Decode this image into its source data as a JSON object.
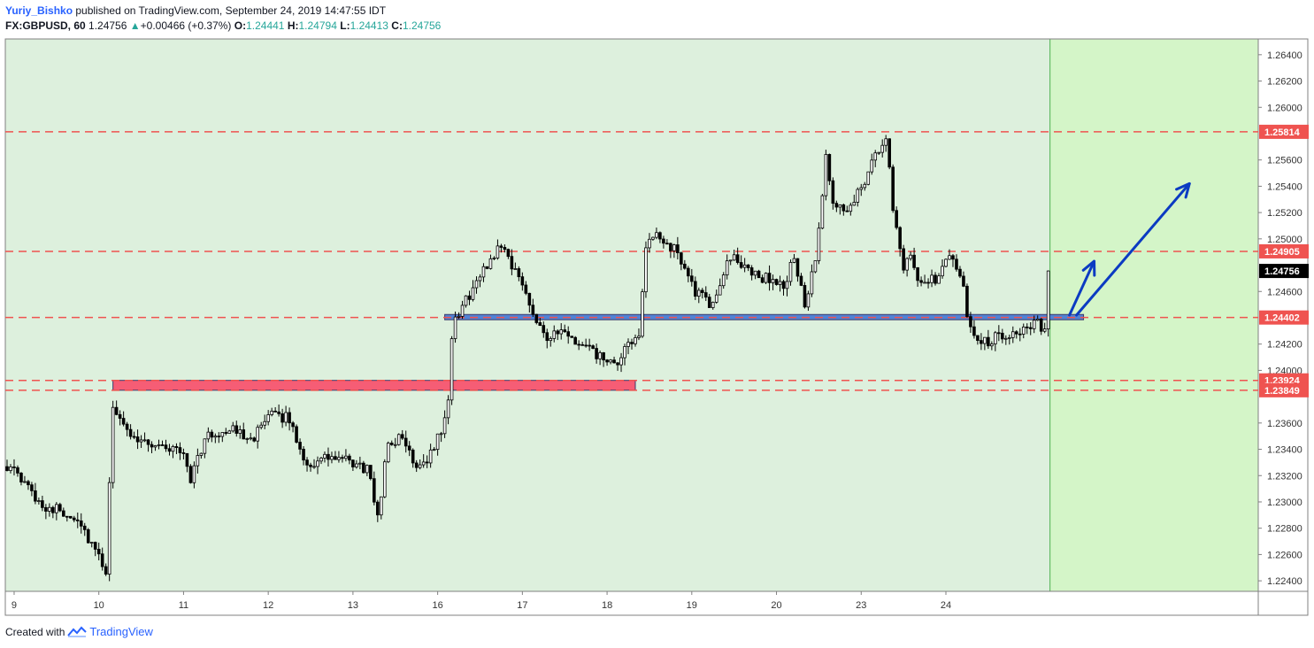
{
  "header": {
    "author": "Yuriy_Bishko",
    "published_text": "published on TradingView.com, September 24, 2019 14:47:55 IDT",
    "symbol": "FX:GBPUSD, 60",
    "last": "1.24756",
    "change": "+0.00466 (+0.37%)",
    "o_label": "O:",
    "o_value": "1.24441",
    "h_label": "H:",
    "h_value": "1.24794",
    "l_label": "L:",
    "l_value": "1.24413",
    "c_label": "C:",
    "c_value": "1.24756"
  },
  "footer": {
    "created_with": "Created with",
    "brand": "TradingView"
  },
  "chart_data": {
    "type": "candlestick",
    "ylim": [
      1.2232,
      1.2652
    ],
    "y_ticks": [
      1.264,
      1.262,
      1.26,
      1.256,
      1.254,
      1.252,
      1.25,
      1.246,
      1.242,
      1.24,
      1.236,
      1.234,
      1.232,
      1.23,
      1.228,
      1.226,
      1.224
    ],
    "y_tick_labels": [
      "1.26400",
      "1.26200",
      "1.26000",
      "1.25600",
      "1.25400",
      "1.25200",
      "1.25000",
      "1.24600",
      "1.24200",
      "1.24000",
      "1.23600",
      "1.23400",
      "1.23200",
      "1.23000",
      "1.22800",
      "1.22600",
      "1.22400"
    ],
    "x_labels": [
      {
        "label": "9",
        "idx": 2
      },
      {
        "label": "10",
        "idx": 26
      },
      {
        "label": "11",
        "idx": 50
      },
      {
        "label": "12",
        "idx": 74
      },
      {
        "label": "13",
        "idx": 98
      },
      {
        "label": "16",
        "idx": 122
      },
      {
        "label": "17",
        "idx": 146
      },
      {
        "label": "18",
        "idx": 170
      },
      {
        "label": "19",
        "idx": 194
      },
      {
        "label": "20",
        "idx": 218
      },
      {
        "label": "23",
        "idx": 242
      },
      {
        "label": "24",
        "idx": 266
      }
    ],
    "n_bars": 296,
    "future_bars": 59,
    "price_lines": [
      {
        "value": 1.25814,
        "label": "1.25814",
        "color": "#ef5350"
      },
      {
        "value": 1.24905,
        "label": "1.24905",
        "color": "#ef5350"
      },
      {
        "value": 1.24402,
        "label": "1.24402",
        "color": "#ef5350"
      },
      {
        "value": 1.23924,
        "label": "1.23924",
        "color": "#ef5350"
      },
      {
        "value": 1.23849,
        "label": "1.23849",
        "color": "#ef5350"
      }
    ],
    "last_price": {
      "value": 1.24756,
      "label": "1.24756"
    },
    "zones": [
      {
        "name": "support-zone-red",
        "start_idx": 30,
        "end_idx": 178,
        "top": 1.23924,
        "bottom": 1.23849,
        "color": "#f7546f"
      },
      {
        "name": "support-zone-blue",
        "start_idx": 124,
        "end_idx": 305,
        "top": 1.24425,
        "bottom": 1.24385,
        "color": "#4a7bd4"
      }
    ],
    "path": [
      [
        0,
        1.2328
      ],
      [
        10,
        1.2298
      ],
      [
        20,
        1.2288
      ],
      [
        28,
        1.2246
      ],
      [
        30,
        1.2375
      ],
      [
        33,
        1.2355
      ],
      [
        40,
        1.2345
      ],
      [
        50,
        1.2338
      ],
      [
        52,
        1.2318
      ],
      [
        56,
        1.2348
      ],
      [
        62,
        1.2355
      ],
      [
        70,
        1.235
      ],
      [
        76,
        1.2368
      ],
      [
        80,
        1.2362
      ],
      [
        85,
        1.2328
      ],
      [
        92,
        1.2334
      ],
      [
        102,
        1.2325
      ],
      [
        105,
        1.229
      ],
      [
        108,
        1.2345
      ],
      [
        112,
        1.2348
      ],
      [
        116,
        1.2328
      ],
      [
        120,
        1.2336
      ],
      [
        124,
        1.2362
      ],
      [
        125,
        1.2378
      ],
      [
        126,
        1.242
      ],
      [
        127,
        1.244
      ],
      [
        132,
        1.2462
      ],
      [
        136,
        1.248
      ],
      [
        140,
        1.2497
      ],
      [
        145,
        1.247
      ],
      [
        150,
        1.244
      ],
      [
        153,
        1.2425
      ],
      [
        157,
        1.2428
      ],
      [
        162,
        1.242
      ],
      [
        168,
        1.241
      ],
      [
        172,
        1.2402
      ],
      [
        176,
        1.2418
      ],
      [
        179,
        1.243
      ],
      [
        181,
        1.249
      ],
      [
        183,
        1.2502
      ],
      [
        188,
        1.2495
      ],
      [
        192,
        1.248
      ],
      [
        195,
        1.246
      ],
      [
        200,
        1.2448
      ],
      [
        204,
        1.2485
      ],
      [
        208,
        1.2482
      ],
      [
        212,
        1.2472
      ],
      [
        216,
        1.247
      ],
      [
        220,
        1.2462
      ],
      [
        223,
        1.2488
      ],
      [
        226,
        1.2448
      ],
      [
        229,
        1.2482
      ],
      [
        232,
        1.256
      ],
      [
        234,
        1.2525
      ],
      [
        238,
        1.2522
      ],
      [
        242,
        1.254
      ],
      [
        246,
        1.2562
      ],
      [
        249,
        1.2578
      ],
      [
        251,
        1.2525
      ],
      [
        254,
        1.248
      ],
      [
        256,
        1.249
      ],
      [
        258,
        1.247
      ],
      [
        263,
        1.2468
      ],
      [
        268,
        1.2488
      ],
      [
        271,
        1.246
      ],
      [
        273,
        1.243
      ],
      [
        277,
        1.2422
      ],
      [
        283,
        1.2428
      ],
      [
        288,
        1.2432
      ],
      [
        292,
        1.2435
      ],
      [
        294,
        1.2428
      ],
      [
        295,
        1.2445
      ],
      [
        296,
        1.24756
      ]
    ],
    "arrows": [
      {
        "from_idx": 301,
        "from_y": 1.2442,
        "to_idx": 308,
        "to_y": 1.2483,
        "color": "#0b3bc2"
      },
      {
        "from_idx": 303,
        "from_y": 1.2442,
        "to_idx": 335,
        "to_y": 1.2542,
        "color": "#0b3bc2"
      }
    ],
    "colors": {
      "background": "#ddf0dd",
      "future_background": "#d4f5c8",
      "candle": "#000000",
      "dashed": "#ef5350",
      "arrow": "#0b3bc2"
    }
  }
}
